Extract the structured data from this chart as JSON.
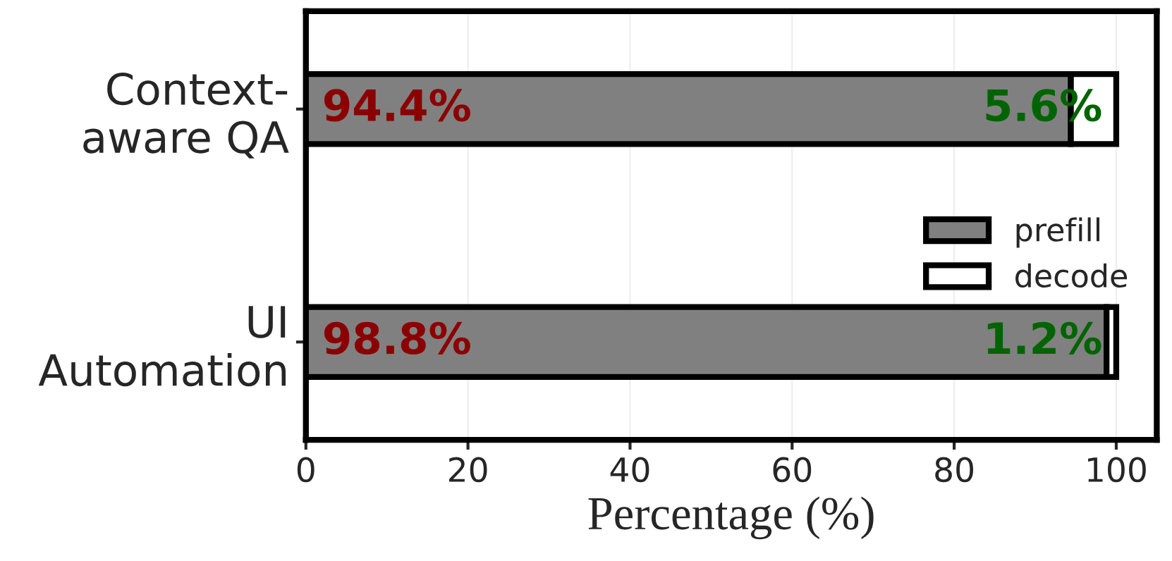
{
  "chart_data": {
    "type": "bar",
    "orientation": "horizontal",
    "stacked": true,
    "xlabel": "Percentage (%)",
    "categories": [
      "Context-\naware QA",
      "UI\nAutomation"
    ],
    "series": [
      {
        "name": "prefill",
        "color": "#808080",
        "values": [
          94.4,
          98.8
        ],
        "value_labels": [
          "94.4%",
          "98.8%"
        ]
      },
      {
        "name": "decode",
        "color": "#ffffff",
        "values": [
          5.6,
          1.2
        ],
        "value_labels": [
          "5.6%",
          "1.2%"
        ]
      }
    ],
    "xlim": [
      0,
      105
    ],
    "xticks": [
      0,
      20,
      40,
      60,
      80,
      100
    ],
    "grid": "x",
    "legend": "right"
  }
}
